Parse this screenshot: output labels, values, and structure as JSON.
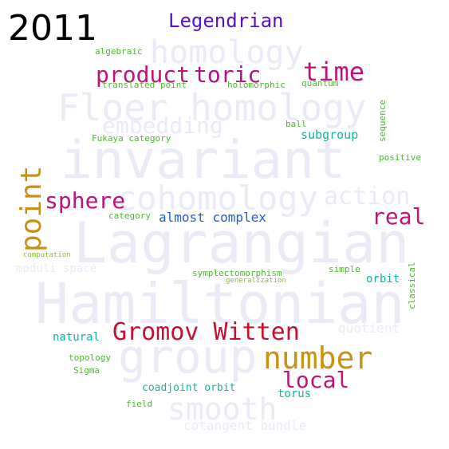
{
  "year": "2011",
  "background_words": [
    {
      "text": "Hamiltonian"
    },
    {
      "text": "Lagrangian"
    },
    {
      "text": "invariant"
    },
    {
      "text": "Floer homology"
    },
    {
      "text": "group"
    },
    {
      "text": "cohomology"
    },
    {
      "text": "action"
    },
    {
      "text": "homology"
    },
    {
      "text": "embedding"
    },
    {
      "text": "smooth"
    },
    {
      "text": "moduli space"
    },
    {
      "text": "quotient"
    },
    {
      "text": "cotangent bundle"
    }
  ],
  "words": [
    {
      "text": "Legendrian",
      "color": "#5a0fc8"
    },
    {
      "text": "product",
      "color": "#c2117a"
    },
    {
      "text": "toric",
      "color": "#b0128a"
    },
    {
      "text": "time",
      "color": "#c2117a"
    },
    {
      "text": "algebraic",
      "color": "#4cb82e"
    },
    {
      "text": "translated point",
      "color": "#4cb82e"
    },
    {
      "text": "holomorphic",
      "color": "#4cb82e"
    },
    {
      "text": "quantum",
      "color": "#4cb82e"
    },
    {
      "text": "ball",
      "color": "#4cb82e"
    },
    {
      "text": "subgroup",
      "color": "#17b2a0"
    },
    {
      "text": "Fukaya category",
      "color": "#4cb82e"
    },
    {
      "text": "sequence",
      "color": "#4cb82e"
    },
    {
      "text": "positive",
      "color": "#4cb82e"
    },
    {
      "text": "point",
      "color": "#c99212"
    },
    {
      "text": "sphere",
      "color": "#c2117a"
    },
    {
      "text": "real",
      "color": "#c2117a"
    },
    {
      "text": "category",
      "color": "#4cb82e"
    },
    {
      "text": "almost complex",
      "color": "#1f5fc8"
    },
    {
      "text": "computation",
      "color": "#86c41f"
    },
    {
      "text": "symplectomorphism",
      "color": "#4cb82e"
    },
    {
      "text": "simple",
      "color": "#4cb82e"
    },
    {
      "text": "generalization",
      "color": "#86c41f"
    },
    {
      "text": "orbit",
      "color": "#17b2a0"
    },
    {
      "text": "classical",
      "color": "#4cb82e"
    },
    {
      "text": "Gromov Witten",
      "color": "#c8102e"
    },
    {
      "text": "natural",
      "color": "#17b2a0"
    },
    {
      "text": "number",
      "color": "#c99212"
    },
    {
      "text": "local",
      "color": "#c2117a"
    },
    {
      "text": "topology",
      "color": "#4cb82e"
    },
    {
      "text": "Sigma",
      "color": "#4cb82e"
    },
    {
      "text": "coadjoint orbit",
      "color": "#17b2a0"
    },
    {
      "text": "torus",
      "color": "#17b2a0"
    },
    {
      "text": "field",
      "color": "#4cb82e"
    }
  ]
}
